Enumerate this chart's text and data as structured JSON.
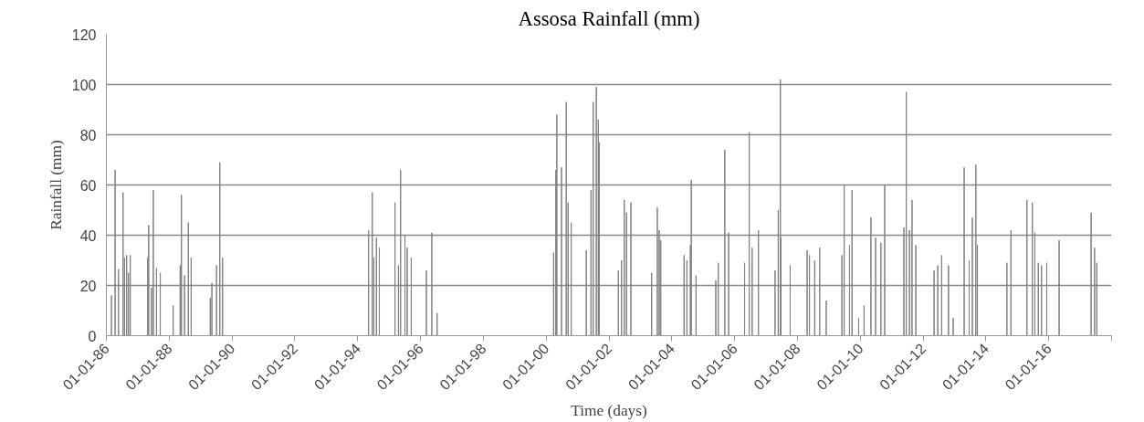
{
  "chart_data": {
    "type": "bar",
    "title": "Assosa Rainfall (mm)",
    "xlabel": "Time (days)",
    "ylabel": "Rainfall (mm)",
    "x": [
      "1986-03-01",
      "1986-04-13",
      "1986-05-22",
      "1986-07-14",
      "1986-07-31",
      "1986-08-25",
      "1986-09-15",
      "1986-10-06",
      "1987-04-27",
      "1987-05-08",
      "1987-06-10",
      "1987-07-01",
      "1987-08-07",
      "1987-09-20",
      "1988-02-17",
      "1988-05-08",
      "1988-05-23",
      "1988-06-28",
      "1988-08-11",
      "1988-09-13",
      "1989-04-23",
      "1989-05-12",
      "1989-07-05",
      "1989-08-12",
      "1989-09-13",
      "1994-05-08",
      "1994-06-20",
      "1994-07-08",
      "1994-08-07",
      "1994-09-10",
      "1995-03-11",
      "1995-04-20",
      "1995-05-15",
      "1995-07-05",
      "1995-07-31",
      "1995-09-16",
      "1996-03-10",
      "1996-05-12",
      "1996-07-13",
      "2000-03-28",
      "2000-04-23",
      "2000-05-05",
      "2000-06-28",
      "2000-08-22",
      "2000-09-13",
      "2000-10-19",
      "2001-04-12",
      "2001-06-06",
      "2001-07-02",
      "2001-08-07",
      "2001-08-30",
      "2001-09-09",
      "2002-04-20",
      "2002-05-27",
      "2002-06-28",
      "2002-07-24",
      "2002-09-13",
      "2003-05-12",
      "2003-07-17",
      "2003-08-08",
      "2003-08-26",
      "2004-05-23",
      "2004-06-25",
      "2004-08-04",
      "2004-08-15",
      "2004-10-09",
      "2005-05-27",
      "2005-06-25",
      "2005-09-09",
      "2005-10-23",
      "2006-04-27",
      "2006-06-20",
      "2006-07-24",
      "2006-10-05",
      "2007-04-16",
      "2007-05-23",
      "2007-06-17",
      "2007-06-25",
      "2007-10-09",
      "2008-04-23",
      "2008-05-20",
      "2008-07-20",
      "2008-09-16",
      "2008-12-01",
      "2009-06-02",
      "2009-06-28",
      "2009-08-29",
      "2009-09-27",
      "2009-12-13",
      "2010-02-14",
      "2010-05-05",
      "2010-06-28",
      "2010-08-29",
      "2010-10-12",
      "2011-05-23",
      "2011-06-20",
      "2011-07-27",
      "2011-08-26",
      "2011-10-09",
      "2012-05-08",
      "2012-06-20",
      "2012-08-04",
      "2012-10-23",
      "2012-12-16",
      "2013-04-23",
      "2013-06-20",
      "2013-07-27",
      "2013-09-06",
      "2013-09-24",
      "2014-09-02",
      "2014-10-19",
      "2015-04-23",
      "2015-06-25",
      "2015-07-24",
      "2015-09-02",
      "2015-10-09",
      "2015-12-09",
      "2016-05-01",
      "2017-05-08",
      "2017-06-17",
      "2017-07-13"
    ],
    "series": [
      {
        "color": "#7f7f7f",
        "values": [
          16,
          66,
          26.5,
          57,
          31,
          32,
          25,
          32,
          31,
          44,
          19,
          58,
          27,
          25,
          12,
          28,
          56,
          24,
          45,
          31,
          15,
          21,
          28,
          69,
          31,
          42,
          57,
          31,
          39,
          35,
          53,
          28,
          66,
          40,
          35,
          31,
          26,
          41,
          9,
          33,
          66,
          88,
          67,
          93,
          53,
          45,
          34,
          58,
          93,
          99,
          86,
          77,
          26,
          30,
          54,
          49,
          53,
          25,
          51,
          42,
          38,
          32,
          30,
          36,
          62,
          24,
          22,
          29,
          74,
          41,
          29,
          81,
          35,
          42,
          26,
          50,
          102,
          39,
          28,
          34,
          32,
          30,
          35,
          14,
          32,
          60,
          36,
          58,
          7,
          12,
          47,
          39,
          37,
          60,
          43,
          97,
          42,
          54,
          36,
          26,
          28,
          32,
          28,
          7,
          67,
          30,
          47,
          68,
          36,
          29,
          42,
          54,
          53,
          41,
          29,
          28,
          29,
          38,
          49,
          35,
          29
        ]
      }
    ],
    "xlim": [
      "1986-01-01",
      "2018-01-01"
    ],
    "xticks": [
      {
        "value": "1986-01-01",
        "label": "01-01-86"
      },
      {
        "value": "1988-01-01",
        "label": "01-01-88"
      },
      {
        "value": "1990-01-01",
        "label": "01-01-90"
      },
      {
        "value": "1992-01-01",
        "label": "01-01-92"
      },
      {
        "value": "1994-01-01",
        "label": "01-01-94"
      },
      {
        "value": "1996-01-01",
        "label": "01-01-96"
      },
      {
        "value": "1998-01-01",
        "label": "01-01-98"
      },
      {
        "value": "2000-01-01",
        "label": "01-01-00"
      },
      {
        "value": "2002-01-01",
        "label": "01-01-02"
      },
      {
        "value": "2004-01-01",
        "label": "01-01-04"
      },
      {
        "value": "2006-01-01",
        "label": "01-01-06"
      },
      {
        "value": "2008-01-01",
        "label": "01-01-08"
      },
      {
        "value": "2010-01-01",
        "label": "01-01-10"
      },
      {
        "value": "2012-01-01",
        "label": "01-01-12"
      },
      {
        "value": "2014-01-01",
        "label": "01-01-14"
      },
      {
        "value": "2016-01-01",
        "label": "01-01-16"
      },
      {
        "value": "2018-01-01",
        "label": null
      }
    ],
    "ylim": [
      0,
      120
    ],
    "yticks": [
      0,
      20,
      40,
      60,
      80,
      100,
      120
    ],
    "grid": "y"
  }
}
